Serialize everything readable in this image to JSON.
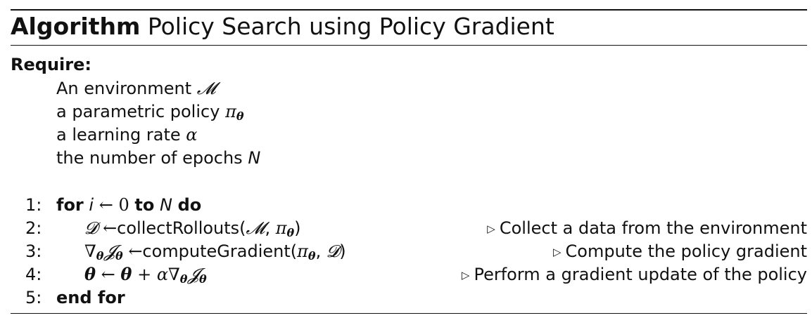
{
  "algorithm": {
    "keyword": "Algorithm",
    "title": "Policy Search using Policy Gradient",
    "require_label": "Require:",
    "inputs": {
      "env_text": "An environment",
      "env_sym": "𝓜",
      "policy_text": "a parametric policy",
      "policy_sym": "π",
      "policy_sub": "θ",
      "lr_text": "a learning rate",
      "lr_sym": "α",
      "epochs_text": "the number of epochs",
      "epochs_sym": "N"
    },
    "steps": [
      {
        "number": "1:",
        "for_kw": "for",
        "var": "i",
        "arrow": "←",
        "start": "0",
        "to_kw": "to",
        "end": "N",
        "do_kw": "do"
      },
      {
        "number": "2:",
        "lhs": "𝓓",
        "arrow": "←",
        "func": "collectRollouts(",
        "arg1": "𝓜",
        "sep": ",",
        "arg2": "π",
        "arg2_sub": "θ",
        "close": ")",
        "comment": "Collect a data from the environment"
      },
      {
        "number": "3:",
        "nabla": "∇",
        "nabla_sub": "θ",
        "obj": "𝓙",
        "obj_sub": "θ",
        "arrow": "←",
        "func": "computeGradient(",
        "arg1": "π",
        "arg1_sub": "θ",
        "sep": ",",
        "arg2": "𝓓",
        "close": ")",
        "comment": "Compute the policy gradient"
      },
      {
        "number": "4:",
        "theta": "θ",
        "arrow": "←",
        "theta2": "θ",
        "plus": "+",
        "alpha": "α",
        "nabla": "∇",
        "nabla_sub": "θ",
        "obj": "𝓙",
        "obj_sub": "θ",
        "comment": "Perform a gradient update of the policy"
      },
      {
        "number": "5:",
        "end_kw": "end for"
      }
    ],
    "comment_glyph": "▷"
  }
}
